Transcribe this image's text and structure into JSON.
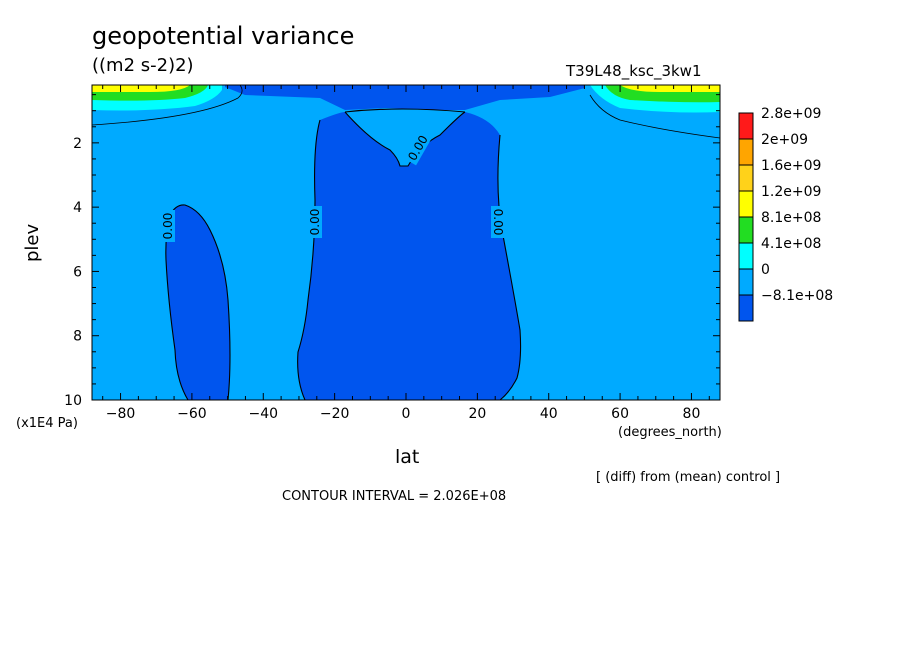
{
  "chart_data": {
    "type": "contour",
    "title": "geopotential variance",
    "units": "((m2 s-2)2)",
    "run_label": "T39L48_ksc_3kw1",
    "xlabel": "lat",
    "x_units": "(degrees_north)",
    "ylabel": "plev",
    "y_units": "(x1E4 Pa)",
    "xlim": [
      -88,
      88
    ],
    "ylim": [
      10,
      0.2
    ],
    "x_ticks": [
      -80,
      -60,
      -40,
      -20,
      0,
      20,
      40,
      60,
      80
    ],
    "y_ticks": [
      2,
      4,
      6,
      8,
      10
    ],
    "contour_interval_text": "CONTOUR INTERVAL = 2.026E+08",
    "footer_note": "[ (diff) from (mean) control ]",
    "contour_labels": [
      "0.00",
      "0.00",
      "0.00",
      "0.00"
    ],
    "legend": {
      "labels": [
        "2.8e+09",
        "2e+09",
        "1.6e+09",
        "1.2e+09",
        "8.1e+08",
        "4.1e+08",
        "0",
        "-8.1e+08"
      ],
      "colors": [
        "#ff1a1a",
        "#ffa500",
        "#ffd21a",
        "#ffff00",
        "#22dd22",
        "#00ffff",
        "#00aaff",
        "#0055ee"
      ]
    },
    "fill_colors": {
      "negative": "#0055ee",
      "zero_to_positive": "#00aaff",
      "mid_positive": "#00ffff",
      "high_positive": "#22dd22",
      "very_high_positive": "#ffff00"
    }
  }
}
